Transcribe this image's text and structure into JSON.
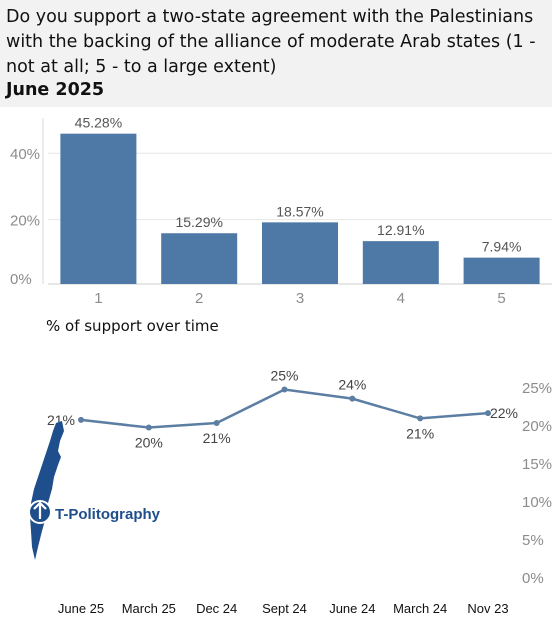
{
  "header": {
    "title": "Do you support a two-state agreement with the Palestinians with the backing of the alliance of moderate Arab states (1 - not at all; 5 - to a large extent)",
    "date": "June 2025"
  },
  "subtitle2": "% of support over time",
  "logo": {
    "text": "T-Politography",
    "icon": "israel-map-icon"
  },
  "colors": {
    "bar": "#4e79a7",
    "line": "#5c7ea3",
    "axis_text": "#8c8c8c",
    "header_bg": "#f2f2f2"
  },
  "chart_data": [
    {
      "type": "bar",
      "categories": [
        "1",
        "2",
        "3",
        "4",
        "5"
      ],
      "values": [
        45.28,
        15.29,
        18.57,
        12.91,
        7.94
      ],
      "value_labels": [
        "45.28%",
        "15.29%",
        "18.57%",
        "12.91%",
        "7.94%"
      ],
      "yticks": [
        "0%",
        "20%",
        "40%"
      ],
      "ytick_values": [
        0,
        20,
        40
      ],
      "ylim": [
        0,
        50
      ],
      "grid": true
    },
    {
      "type": "line",
      "categories": [
        "June 25",
        "March 25",
        "Dec 24",
        "Sept 24",
        "June 24",
        "March 24",
        "Nov 23"
      ],
      "values": [
        21,
        20,
        21,
        25,
        24,
        21,
        22
      ],
      "plotted_values": [
        20.8,
        19.8,
        20.4,
        24.8,
        23.6,
        21.0,
        21.7
      ],
      "value_labels": [
        "21%",
        "20%",
        "21%",
        "25%",
        "24%",
        "21%",
        "22%"
      ],
      "yticks": [
        "0%",
        "5%",
        "10%",
        "15%",
        "20%",
        "25%"
      ],
      "ytick_values": [
        0,
        5,
        10,
        15,
        20,
        25
      ],
      "ylim": [
        0,
        27
      ],
      "yaxis_side": "right",
      "grid": false
    }
  ]
}
